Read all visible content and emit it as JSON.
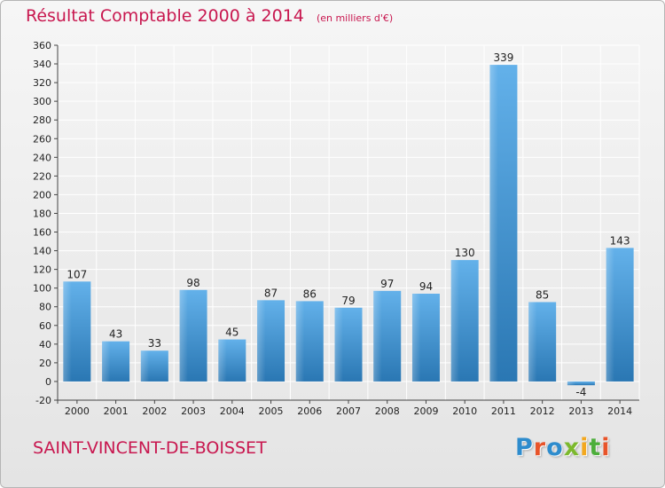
{
  "header": {
    "title": "Résultat Comptable 2000 à 2014",
    "subtitle": "(en milliers d'€)"
  },
  "footer": {
    "commune": "SAINT-VINCENT-DE-BOISSET",
    "logo_text": "Proxiti",
    "logo_colors": [
      "#2e8ccd",
      "#e8542a",
      "#2e8ccd",
      "#7cb92d",
      "#f3a81f",
      "#4cae3b",
      "#e8542a"
    ]
  },
  "colors": {
    "accent": "#c8174f",
    "bar_top": "#63b1ea",
    "bar_bottom": "#2a77b3",
    "grid": "#ffffff",
    "axis_text": "#222222"
  },
  "chart_data": {
    "type": "bar",
    "categories": [
      "2000",
      "2001",
      "2002",
      "2003",
      "2004",
      "2005",
      "2006",
      "2007",
      "2008",
      "2009",
      "2010",
      "2011",
      "2012",
      "2013",
      "2014"
    ],
    "values": [
      107,
      43,
      33,
      98,
      45,
      87,
      86,
      79,
      97,
      94,
      130,
      339,
      85,
      -4,
      143
    ],
    "data_labels": [
      "107",
      "43",
      "33",
      "98",
      "45",
      "87",
      "86",
      "79",
      "97",
      "94",
      "130",
      "339",
      "85",
      "-4",
      "143"
    ],
    "y_ticks": [
      "-20",
      "0",
      "20",
      "40",
      "60",
      "80",
      "100",
      "120",
      "140",
      "160",
      "180",
      "200",
      "220",
      "240",
      "260",
      "280",
      "300",
      "320",
      "340",
      "360"
    ],
    "ylim": [
      -20,
      360
    ],
    "title": "Résultat Comptable 2000 à 2014",
    "xlabel": "",
    "ylabel": "",
    "grid": true,
    "legend": false
  }
}
